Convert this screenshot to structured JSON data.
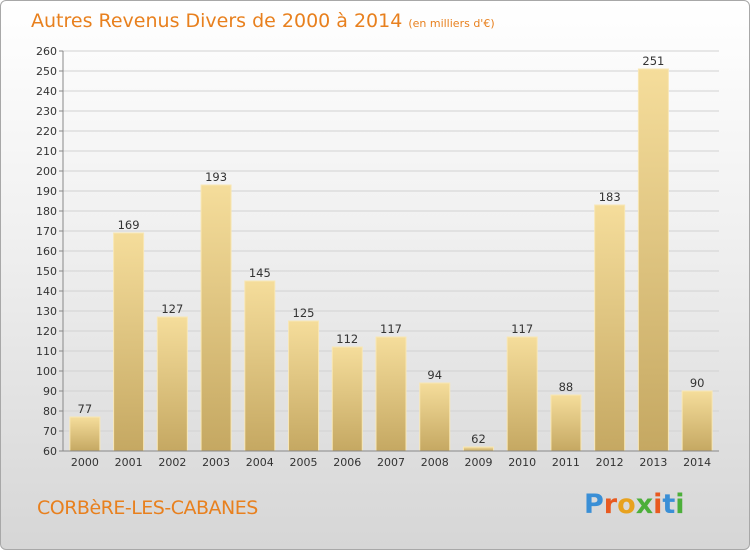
{
  "chart_data": {
    "type": "bar",
    "title": "Autres Revenus Divers de 2000 à 2014",
    "subtitle": "(en milliers d'€)",
    "categories": [
      "2000",
      "2001",
      "2002",
      "2003",
      "2004",
      "2005",
      "2006",
      "2007",
      "2008",
      "2009",
      "2010",
      "2011",
      "2012",
      "2013",
      "2014"
    ],
    "values": [
      77,
      169,
      127,
      193,
      145,
      125,
      112,
      117,
      94,
      62,
      117,
      88,
      183,
      251,
      90
    ],
    "ylim": [
      60,
      260
    ],
    "yticks": [
      60,
      70,
      80,
      90,
      100,
      110,
      120,
      130,
      140,
      150,
      160,
      170,
      180,
      190,
      200,
      210,
      220,
      230,
      240,
      250,
      260
    ],
    "grid": true,
    "colors": {
      "bar_top": "#f5dd9b",
      "bar_bottom": "#c5a862",
      "bar_edge": "#f8e7b5",
      "title": "#e8801e"
    }
  },
  "footer": {
    "commune": "CORBèRE-LES-CABANES",
    "logo": [
      "P",
      "r",
      "o",
      "x",
      "i",
      "t",
      "i"
    ],
    "logo_colors": [
      "#3a8fd6",
      "#e85a20",
      "#e8a21e",
      "#4caf3a",
      "#e85a20",
      "#3a8fd6",
      "#4caf3a"
    ]
  }
}
